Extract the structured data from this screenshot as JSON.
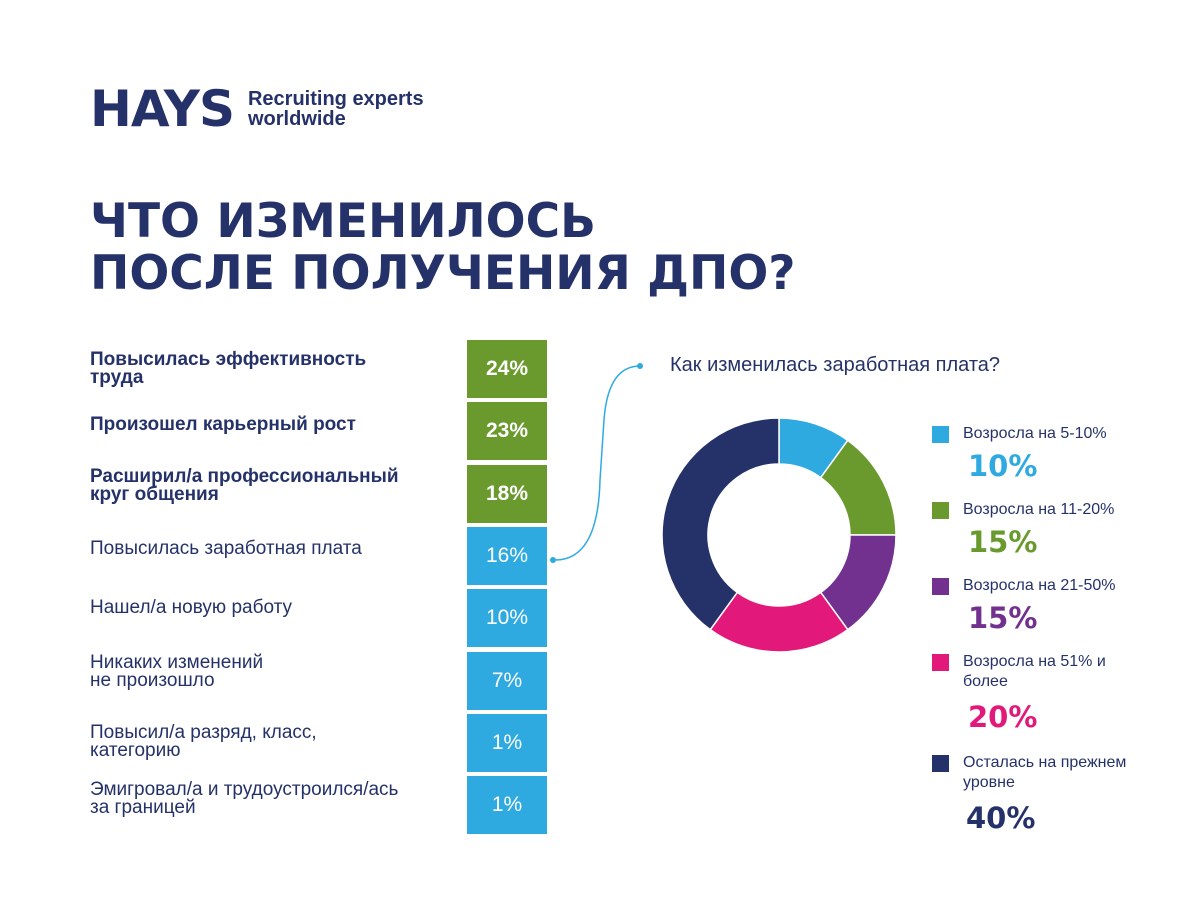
{
  "logo": {
    "wordmark": "HAYS",
    "tagline_line1": "Recruiting experts",
    "tagline_line2": "worldwide"
  },
  "title": {
    "line1": "ЧТО ИЗМЕНИЛОСЬ",
    "line2": "ПОСЛЕ ПОЛУЧЕНИЯ ДПО?"
  },
  "colors": {
    "navy": "#253269",
    "green": "#6a9a2e",
    "blue": "#2eaae1",
    "purple": "#72308f",
    "magenta": "#e2197a",
    "white": "#ffffff"
  },
  "chart_data": [
    {
      "type": "bar",
      "categories": [
        "Повысилась эффективность труда",
        "Произошел карьерный рост",
        "Расширил/а профессиональный круг общения",
        "Повысилась заработная плата",
        "Нашел/а новую работу",
        "Никаких изменений не произошло",
        "Повысил/а разряд, класс, категорию",
        "Эмигровал/а и трудоустроился/ась за границей"
      ],
      "label_lines": [
        [
          "Повысилась эффективность",
          "труда"
        ],
        [
          "Произошел карьерный рост"
        ],
        [
          "Расширил/а профессиональный",
          "круг общения"
        ],
        [
          "Повысилась заработная плата"
        ],
        [
          "Нашел/а новую работу"
        ],
        [
          "Никаких изменений",
          "не произошло"
        ],
        [
          "Повысил/а разряд, класс,",
          "категорию"
        ],
        [
          "Эмигровал/а и трудоустроился/ась",
          "за границей"
        ]
      ],
      "values": [
        24,
        23,
        18,
        16,
        10,
        7,
        1,
        1
      ],
      "value_labels": [
        "24%",
        "23%",
        "18%",
        "16%",
        "10%",
        "7%",
        "1%",
        "1%"
      ],
      "highlight": [
        true,
        true,
        true,
        false,
        false,
        false,
        false,
        false
      ],
      "colors": [
        "#6a9a2e",
        "#6a9a2e",
        "#6a9a2e",
        "#2eaae1",
        "#2eaae1",
        "#2eaae1",
        "#2eaae1",
        "#2eaae1"
      ]
    },
    {
      "type": "pie",
      "title": "Как изменилась заработная плата?",
      "categories": [
        "Возросла на 5-10%",
        "Возросла на 11-20%",
        "Возросла на 21-50%",
        "Возросла на 51% и более",
        "Осталась на прежнем уровне"
      ],
      "label_lines": [
        [
          "Возросла на 5-10%"
        ],
        [
          "Возросла на 11-20%"
        ],
        [
          "Возросла на 21-50%"
        ],
        [
          "Возросла на 51% и",
          "более"
        ],
        [
          "Осталась на прежнем",
          "уровне"
        ]
      ],
      "values": [
        10,
        15,
        15,
        20,
        40
      ],
      "value_labels": [
        "10%",
        "15%",
        "15%",
        "20%",
        "40%"
      ],
      "colors": [
        "#2eaae1",
        "#6a9a2e",
        "#72308f",
        "#e2197a",
        "#253269"
      ],
      "legend_position": "right"
    }
  ]
}
